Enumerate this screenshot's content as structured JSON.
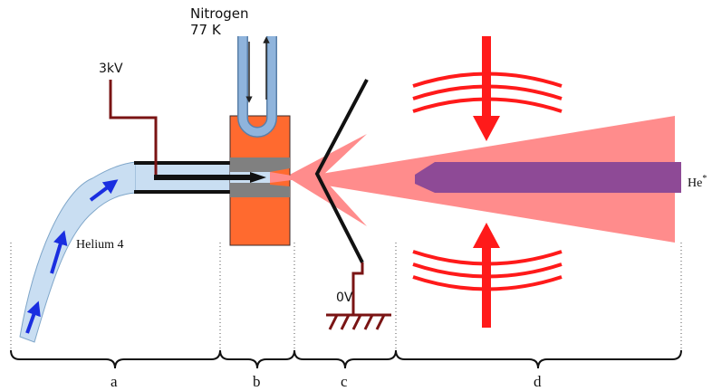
{
  "labels": {
    "nitrogen_line1": "Nitrogen",
    "nitrogen_line2": "77 K",
    "voltage_high": "3kV",
    "helium_source": "Helium 4",
    "voltage_ground": "0V",
    "product": "He",
    "product_superscript": "*"
  },
  "sections": [
    "a",
    "b",
    "c",
    "d"
  ],
  "colors": {
    "helium_tube": "#c9def2",
    "helium_tube_edge": "#7fa6c9",
    "flow_arrow": "#1a2ee0",
    "electrode": "#7a1414",
    "cold_block": "#ff6a2f",
    "nitrogen_tube": "#8fb4dc",
    "nozzle": "#808080",
    "beam": "#ff8c8c",
    "beam_core": "#8e4a96",
    "magnet": "#ff1a1a"
  }
}
